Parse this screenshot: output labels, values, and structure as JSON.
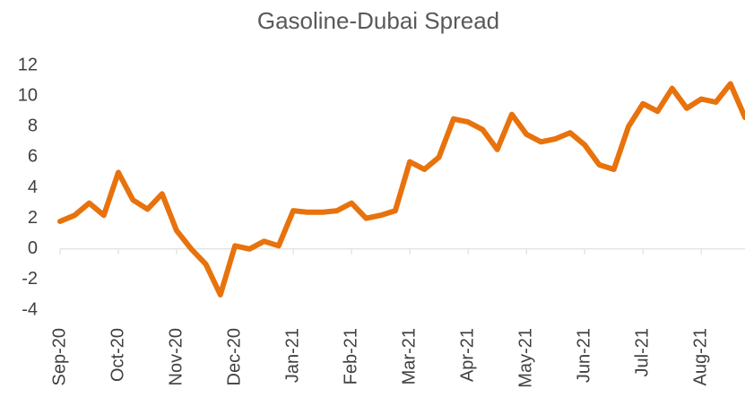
{
  "chart_data": {
    "type": "line",
    "title": "Gasoline-Dubai Spread",
    "categories": [
      "Sep-20",
      null,
      null,
      null,
      "Oct-20",
      null,
      null,
      null,
      "Nov-20",
      null,
      null,
      null,
      "Dec-20",
      null,
      null,
      null,
      "Jan-21",
      null,
      null,
      null,
      "Feb-21",
      null,
      null,
      null,
      "Mar-21",
      null,
      null,
      null,
      "Apr-21",
      null,
      null,
      null,
      "May-21",
      null,
      null,
      null,
      "Jun-21",
      null,
      null,
      null,
      "Jul-21",
      null,
      null,
      null,
      "Aug-21",
      null,
      null,
      null
    ],
    "series": [
      {
        "name": "Gasoline-Dubai Spread",
        "color": "#e8720c",
        "values": [
          1.8,
          2.2,
          3.0,
          2.2,
          5.0,
          3.2,
          2.6,
          3.6,
          1.2,
          0.0,
          -1.0,
          -3.0,
          0.2,
          0.0,
          0.5,
          0.2,
          2.5,
          2.4,
          2.4,
          2.5,
          3.0,
          2.0,
          2.2,
          2.5,
          5.7,
          5.2,
          6.0,
          8.5,
          8.3,
          7.8,
          6.5,
          8.8,
          7.5,
          7.0,
          7.2,
          7.6,
          6.8,
          5.5,
          5.2,
          8.0,
          9.5,
          9.0,
          10.5,
          9.2,
          9.8,
          9.6,
          10.8,
          8.6
        ]
      }
    ],
    "ylim": [
      -4,
      12
    ],
    "yticks": [
      -4,
      -2,
      0,
      2,
      4,
      6,
      8,
      10,
      12
    ]
  }
}
